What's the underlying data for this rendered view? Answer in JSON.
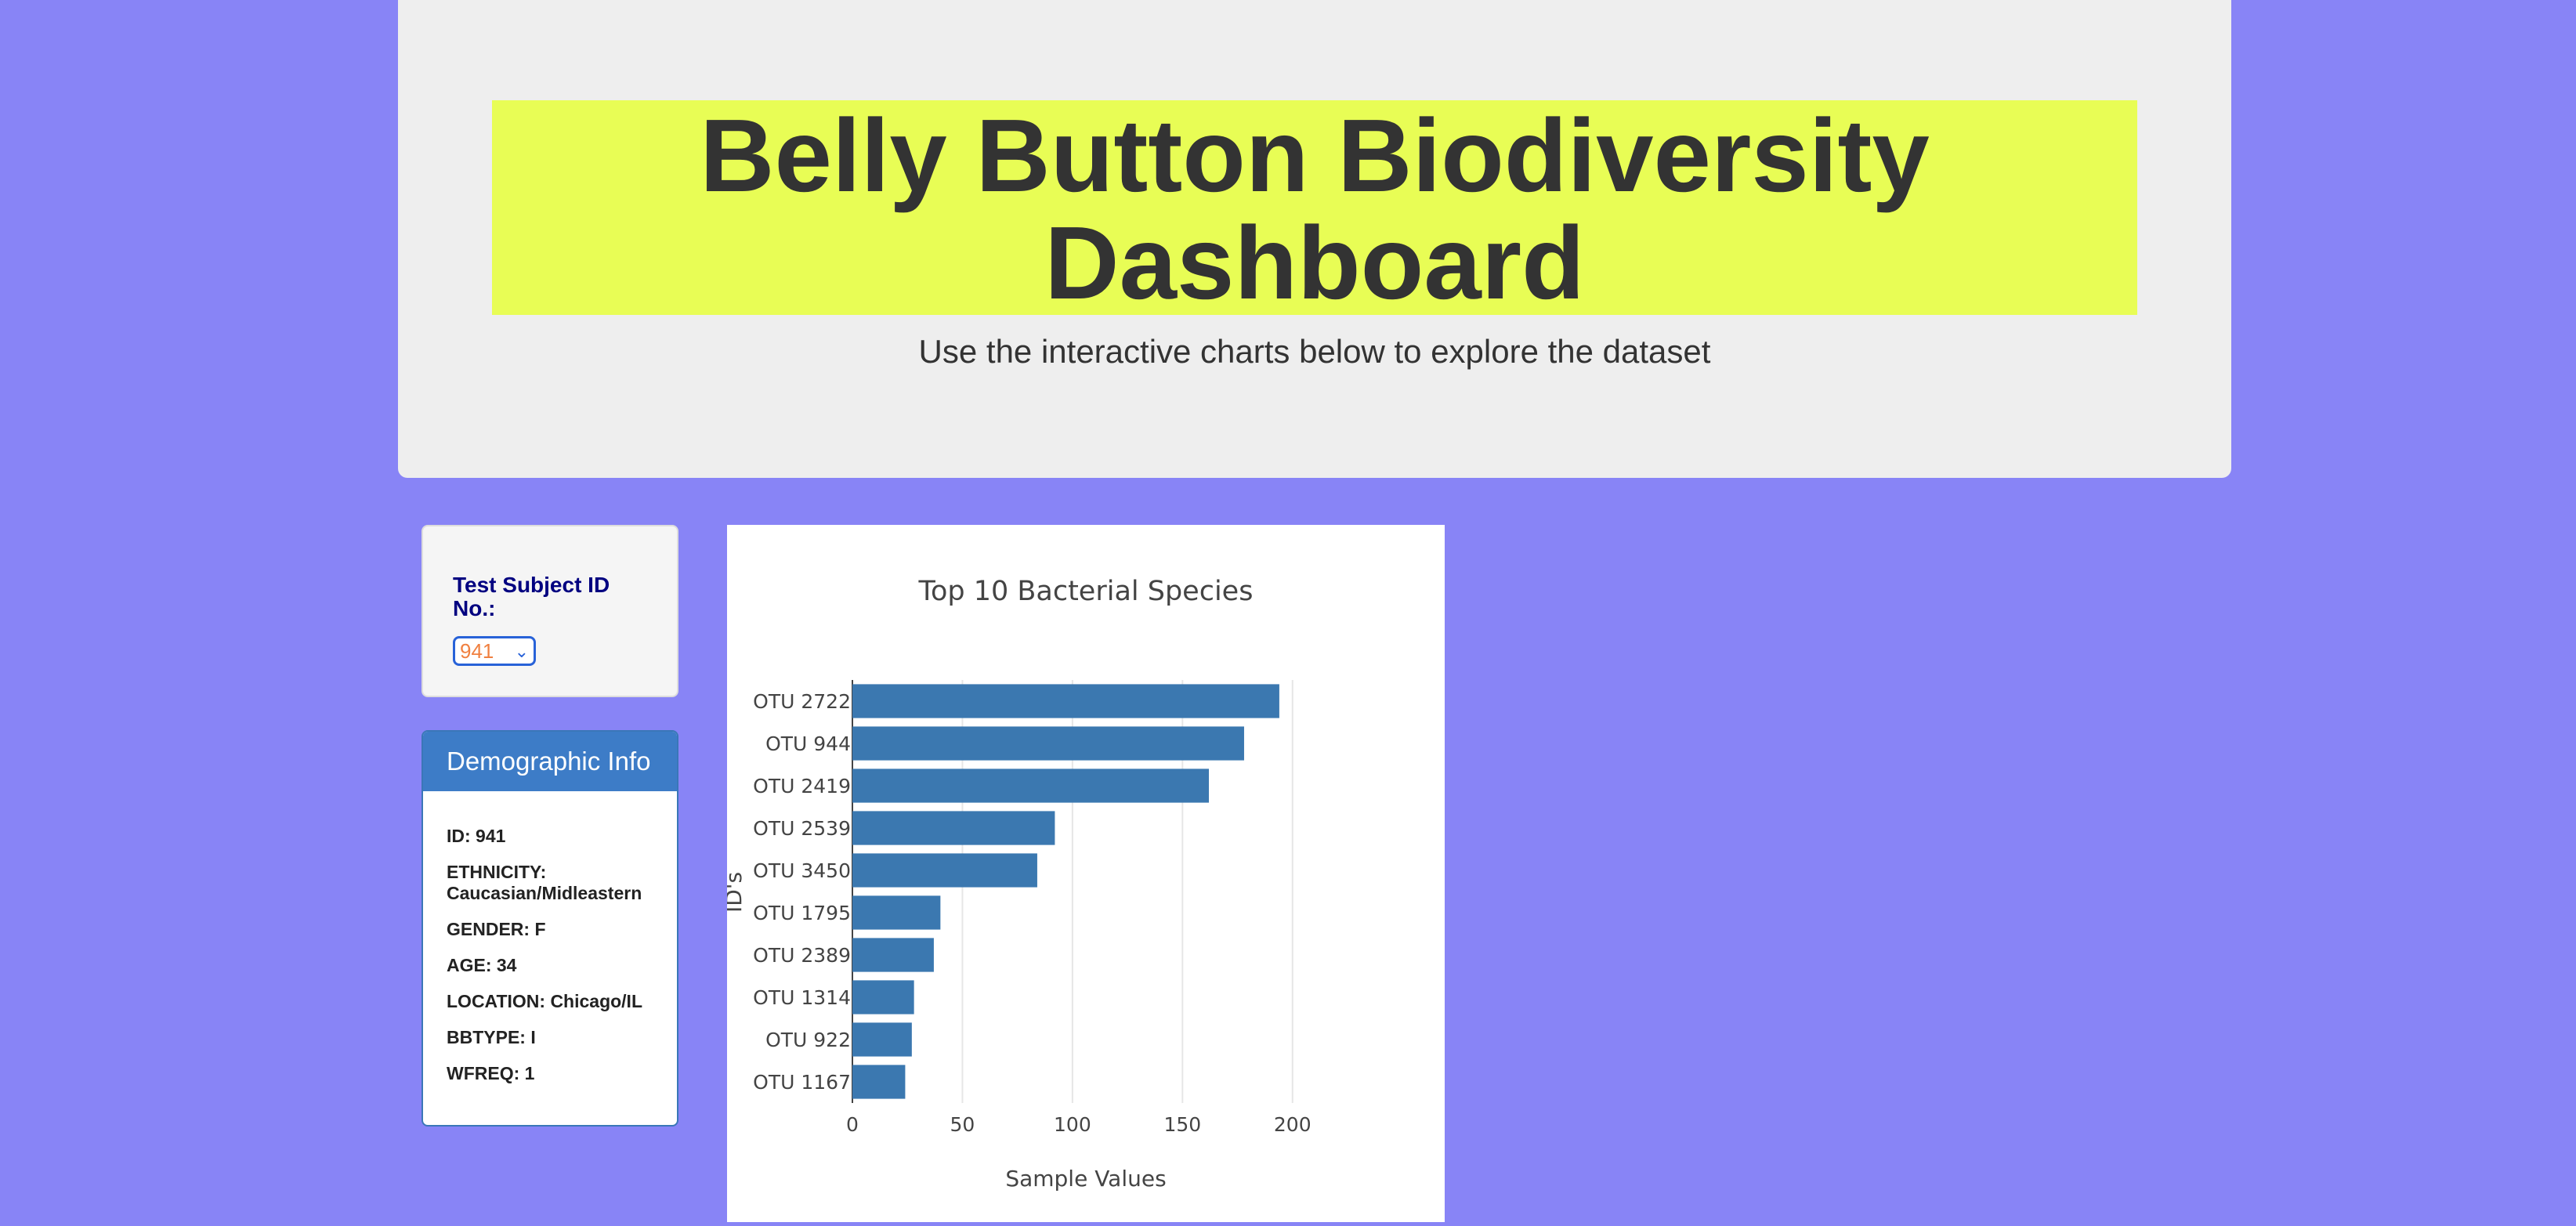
{
  "header": {
    "title_line1": "Belly Button Biodiversity",
    "title_line2": "Dashboard",
    "subtitle": "Use the interactive charts below to explore the dataset"
  },
  "selector": {
    "label": "Test Subject ID No.:",
    "selected": "941"
  },
  "demographics": {
    "heading": "Demographic Info",
    "rows": [
      "ID: 941",
      "ETHNICITY: Caucasian/Midleastern",
      "GENDER: F",
      "AGE: 34",
      "LOCATION: Chicago/IL",
      "BBTYPE: I",
      "WFREQ: 1"
    ]
  },
  "colors": {
    "background": "#8884f6",
    "highlight": "#e8fd55",
    "bar": "#3b78b0",
    "panel_heading": "#3d7cc7"
  },
  "chart_data": {
    "type": "bar",
    "orientation": "horizontal",
    "title": "Top 10 Bacterial Species",
    "xlabel": "Sample Values",
    "ylabel": "ID's",
    "categories": [
      "OTU 2722",
      "OTU 944",
      "OTU 2419",
      "OTU 2539",
      "OTU 3450",
      "OTU 1795",
      "OTU 2389",
      "OTU 1314",
      "OTU 922",
      "OTU 1167"
    ],
    "values": [
      194,
      178,
      162,
      92,
      84,
      40,
      37,
      28,
      27,
      24
    ],
    "xticks": [
      0,
      50,
      100,
      150,
      200
    ],
    "xlim": [
      0,
      204
    ],
    "grid": true
  }
}
